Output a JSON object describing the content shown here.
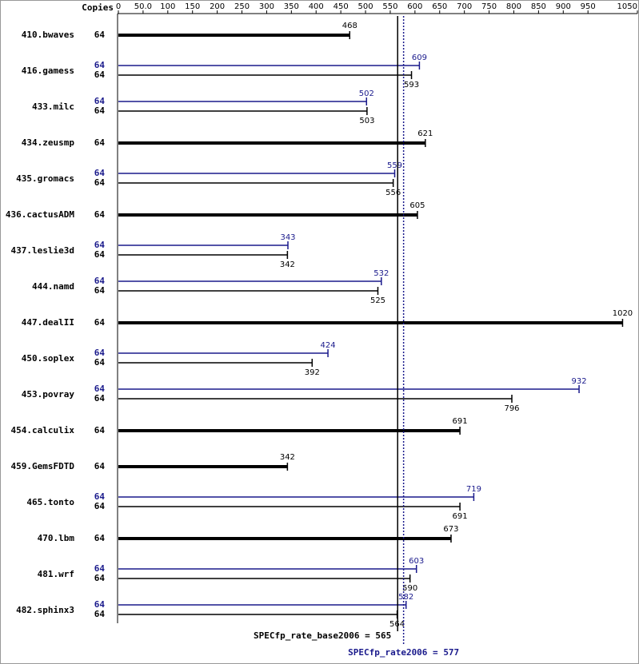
{
  "chart_data": {
    "type": "bar",
    "copies_header": "Copies",
    "categories": [
      "410.bwaves",
      "416.gamess",
      "433.milc",
      "434.zeusmp",
      "435.gromacs",
      "436.cactusADM",
      "437.leslie3d",
      "444.namd",
      "447.dealII",
      "450.soplex",
      "453.povray",
      "454.calculix",
      "459.GemsFDTD",
      "465.tonto",
      "470.lbm",
      "481.wrf",
      "482.sphinx3"
    ],
    "series": [
      {
        "color": "#1a1a8c",
        "copies": [
          null,
          64,
          64,
          null,
          64,
          null,
          64,
          64,
          null,
          64,
          64,
          null,
          null,
          64,
          null,
          64,
          64
        ],
        "values": [
          null,
          609,
          502,
          null,
          559,
          null,
          343,
          532,
          null,
          424,
          932,
          null,
          null,
          719,
          null,
          603,
          582
        ]
      },
      {
        "color": "#000000",
        "copies": [
          64,
          64,
          64,
          64,
          64,
          64,
          64,
          64,
          64,
          64,
          64,
          64,
          64,
          64,
          64,
          64,
          64
        ],
        "values": [
          468,
          593,
          503,
          621,
          556,
          605,
          342,
          525,
          1020,
          392,
          796,
          691,
          342,
          691,
          673,
          590,
          564
        ]
      }
    ],
    "reference_lines": [
      {
        "label": "SPECfp_rate_base2006 =",
        "value": 565,
        "color": "#000000",
        "style": "solid"
      },
      {
        "label": "SPECfp_rate2006 =",
        "value": 577,
        "color": "#1a1a8c",
        "style": "dotted"
      }
    ],
    "xlim": [
      0,
      1050
    ],
    "xticks": [
      0,
      {
        "value": 50,
        "label": "50.0"
      },
      100,
      150,
      200,
      250,
      300,
      350,
      400,
      450,
      500,
      550,
      600,
      650,
      700,
      750,
      800,
      850,
      900,
      950,
      1050
    ]
  }
}
